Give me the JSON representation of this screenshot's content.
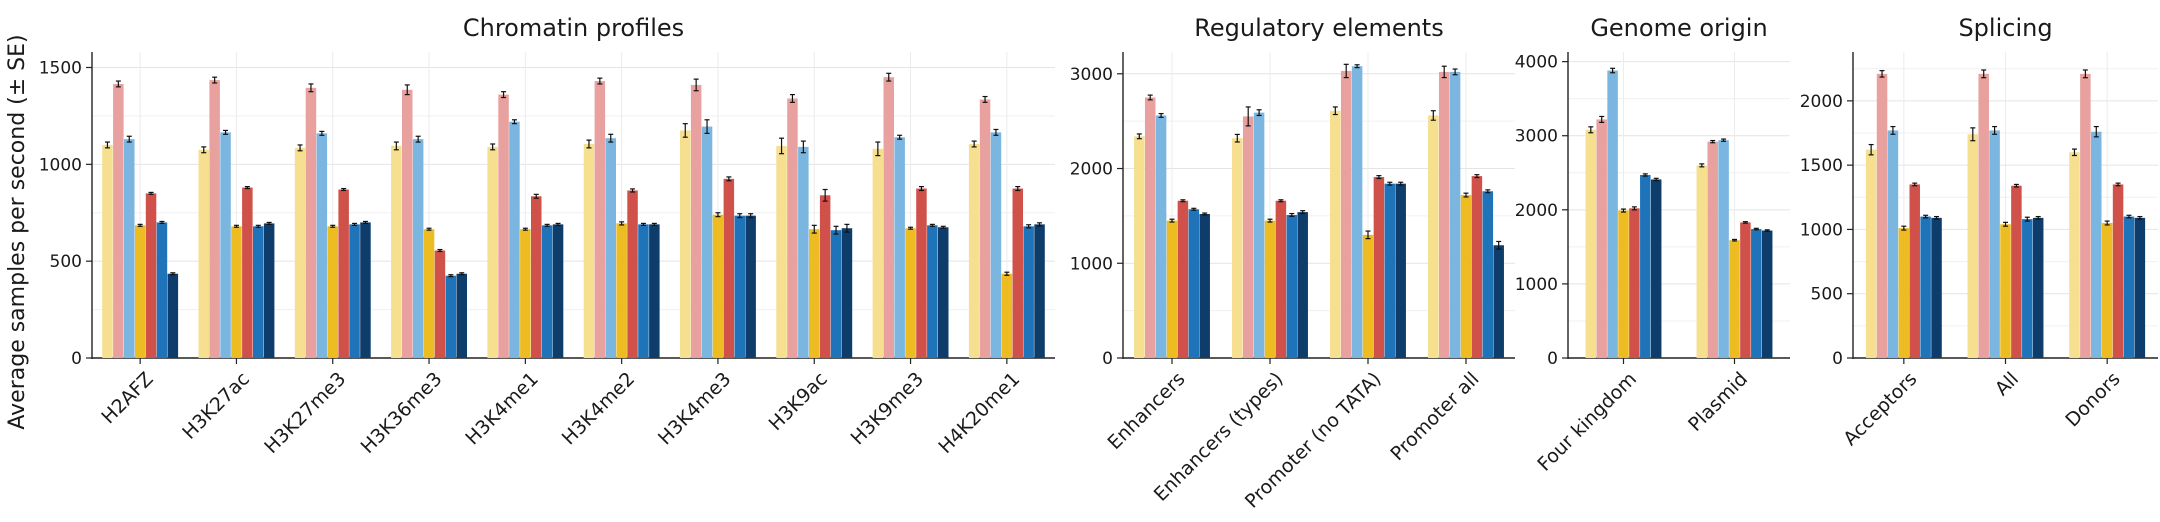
{
  "figure": {
    "ylabel": "Average samples per second (± SE)",
    "series_colors": [
      "#f6df8e",
      "#e8a19e",
      "#7bb6e0",
      "#edbb22",
      "#d0514a",
      "#1f73b8",
      "#0e3d6b"
    ]
  },
  "chart_data": [
    {
      "type": "bar",
      "title": "Chromatin profiles",
      "ylabel": "Average samples per second (± SE)",
      "ylim": [
        0,
        1580
      ],
      "yticks": [
        0,
        500,
        1000,
        1500
      ],
      "ytick_labels": [
        "0",
        "500",
        "1000",
        "1500"
      ],
      "grid": true,
      "categories": [
        "H2AFZ",
        "H3K27ac",
        "H3K27me3",
        "H3K36me3",
        "H3K4me1",
        "H3K4me2",
        "H3K4me3",
        "H3K9ac",
        "H3K9me3",
        "H4K20me1"
      ],
      "series": [
        {
          "values": [
            1100,
            1075,
            1085,
            1095,
            1090,
            1105,
            1175,
            1095,
            1080,
            1105
          ],
          "errors": [
            15,
            15,
            15,
            20,
            15,
            20,
            35,
            40,
            35,
            15
          ]
        },
        {
          "values": [
            1415,
            1435,
            1395,
            1385,
            1360,
            1430,
            1410,
            1340,
            1450,
            1335
          ],
          "errors": [
            15,
            15,
            20,
            25,
            15,
            15,
            30,
            20,
            20,
            15
          ]
        },
        {
          "values": [
            1130,
            1165,
            1160,
            1130,
            1220,
            1135,
            1195,
            1090,
            1140,
            1165
          ],
          "errors": [
            15,
            10,
            10,
            15,
            10,
            20,
            35,
            30,
            10,
            15
          ]
        },
        {
          "values": [
            685,
            680,
            680,
            665,
            665,
            695,
            740,
            665,
            670,
            435
          ],
          "errors": [
            5,
            5,
            5,
            5,
            5,
            8,
            10,
            20,
            5,
            8
          ]
        },
        {
          "values": [
            850,
            880,
            870,
            555,
            835,
            865,
            925,
            840,
            875,
            875
          ],
          "errors": [
            5,
            5,
            5,
            5,
            10,
            8,
            10,
            30,
            10,
            10
          ]
        },
        {
          "values": [
            700,
            680,
            690,
            425,
            685,
            690,
            735,
            660,
            685,
            680
          ],
          "errors": [
            5,
            5,
            5,
            5,
            5,
            5,
            10,
            20,
            5,
            8
          ]
        },
        {
          "values": [
            435,
            695,
            700,
            435,
            690,
            690,
            735,
            670,
            675,
            690
          ],
          "errors": [
            5,
            5,
            5,
            5,
            5,
            5,
            10,
            20,
            5,
            8
          ]
        }
      ]
    },
    {
      "type": "bar",
      "title": "Regulatory elements",
      "ylim": [
        0,
        3230
      ],
      "yticks": [
        0,
        1000,
        2000,
        3000
      ],
      "ytick_labels": [
        "0",
        "1000",
        "2000",
        "3000"
      ],
      "grid": true,
      "categories": [
        "Enhancers",
        "Enhancers (types)",
        "Promoter (no TATA)",
        "Promoter all"
      ],
      "series": [
        {
          "values": [
            2340,
            2320,
            2610,
            2560
          ],
          "errors": [
            25,
            40,
            40,
            50
          ]
        },
        {
          "values": [
            2750,
            2550,
            3030,
            3020
          ],
          "errors": [
            25,
            100,
            70,
            60
          ]
        },
        {
          "values": [
            2560,
            2590,
            3080,
            3020
          ],
          "errors": [
            20,
            30,
            15,
            30
          ]
        },
        {
          "values": [
            1450,
            1450,
            1300,
            1720
          ],
          "errors": [
            15,
            15,
            40,
            20
          ]
        },
        {
          "values": [
            1660,
            1660,
            1910,
            1920
          ],
          "errors": [
            10,
            10,
            15,
            15
          ]
        },
        {
          "values": [
            1570,
            1510,
            1840,
            1760
          ],
          "errors": [
            10,
            15,
            15,
            15
          ]
        },
        {
          "values": [
            1520,
            1540,
            1840,
            1190
          ],
          "errors": [
            10,
            15,
            15,
            40
          ]
        }
      ]
    },
    {
      "type": "bar",
      "title": "Genome origin",
      "ylim": [
        0,
        4130
      ],
      "yticks": [
        0,
        1000,
        2000,
        3000,
        4000
      ],
      "ytick_labels": [
        "0",
        "1000",
        "2000",
        "3000",
        "4000"
      ],
      "grid": true,
      "categories": [
        "Four kingdom",
        "Plasmid"
      ],
      "series": [
        {
          "values": [
            3080,
            2600
          ],
          "errors": [
            40,
            20
          ]
        },
        {
          "values": [
            3220,
            2920
          ],
          "errors": [
            40,
            15
          ]
        },
        {
          "values": [
            3880,
            2940
          ],
          "errors": [
            30,
            15
          ]
        },
        {
          "values": [
            1990,
            1590
          ],
          "errors": [
            20,
            10
          ]
        },
        {
          "values": [
            2020,
            1830
          ],
          "errors": [
            20,
            10
          ]
        },
        {
          "values": [
            2470,
            1740
          ],
          "errors": [
            15,
            10
          ]
        },
        {
          "values": [
            2410,
            1720
          ],
          "errors": [
            15,
            10
          ]
        }
      ]
    },
    {
      "type": "bar",
      "title": "Splicing",
      "ylim": [
        0,
        2380
      ],
      "yticks": [
        0,
        500,
        1000,
        1500,
        2000
      ],
      "ytick_labels": [
        "0",
        "500",
        "1000",
        "1500",
        "2000"
      ],
      "grid": true,
      "categories": [
        "Acceptors",
        "All",
        "Donors"
      ],
      "series": [
        {
          "values": [
            1620,
            1740,
            1600
          ],
          "errors": [
            40,
            50,
            25
          ]
        },
        {
          "values": [
            2210,
            2210,
            2210
          ],
          "errors": [
            25,
            30,
            30
          ]
        },
        {
          "values": [
            1770,
            1770,
            1760
          ],
          "errors": [
            30,
            30,
            40
          ]
        },
        {
          "values": [
            1010,
            1040,
            1050
          ],
          "errors": [
            15,
            15,
            15
          ]
        },
        {
          "values": [
            1350,
            1340,
            1350
          ],
          "errors": [
            10,
            10,
            10
          ]
        },
        {
          "values": [
            1100,
            1080,
            1100
          ],
          "errors": [
            10,
            15,
            10
          ]
        },
        {
          "values": [
            1090,
            1090,
            1090
          ],
          "errors": [
            10,
            10,
            10
          ]
        }
      ]
    }
  ]
}
